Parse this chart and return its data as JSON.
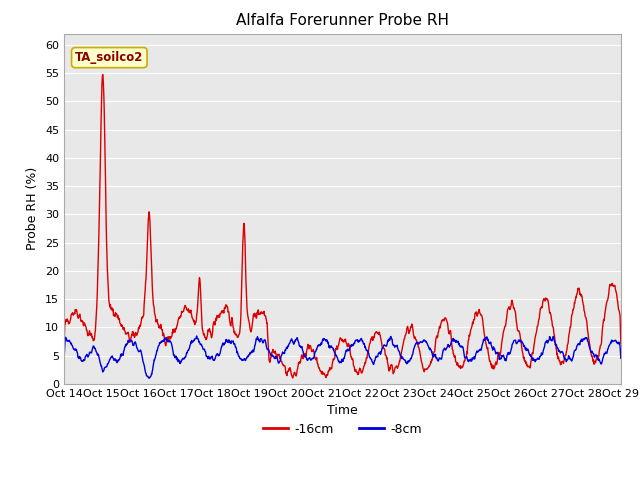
{
  "title": "Alfalfa Forerunner Probe RH",
  "ylabel": "Probe RH (%)",
  "xlabel": "Time",
  "annotation_text": "TA_soilco2",
  "annotation_color": "#8B0000",
  "annotation_bg": "#FFFFCC",
  "annotation_border": "#CCAA00",
  "ylim": [
    0,
    62
  ],
  "yticks": [
    0,
    5,
    10,
    15,
    20,
    25,
    30,
    35,
    40,
    45,
    50,
    55,
    60
  ],
  "xtick_labels": [
    "Oct 14",
    "Oct 15",
    "Oct 16",
    "Oct 17",
    "Oct 18",
    "Oct 19",
    "Oct 20",
    "Oct 21",
    "Oct 22",
    "Oct 23",
    "Oct 24",
    "Oct 25",
    "Oct 26",
    "Oct 27",
    "Oct 28",
    "Oct 29"
  ],
  "line1_color": "#DD0000",
  "line2_color": "#0000DD",
  "line1_label": "-16cm",
  "line2_label": "-8cm",
  "line_width": 1.0,
  "plot_bg_color": "#E8E8E8",
  "grid_color": "#FFFFFF",
  "title_fontsize": 11,
  "axis_label_fontsize": 9,
  "tick_fontsize": 8
}
